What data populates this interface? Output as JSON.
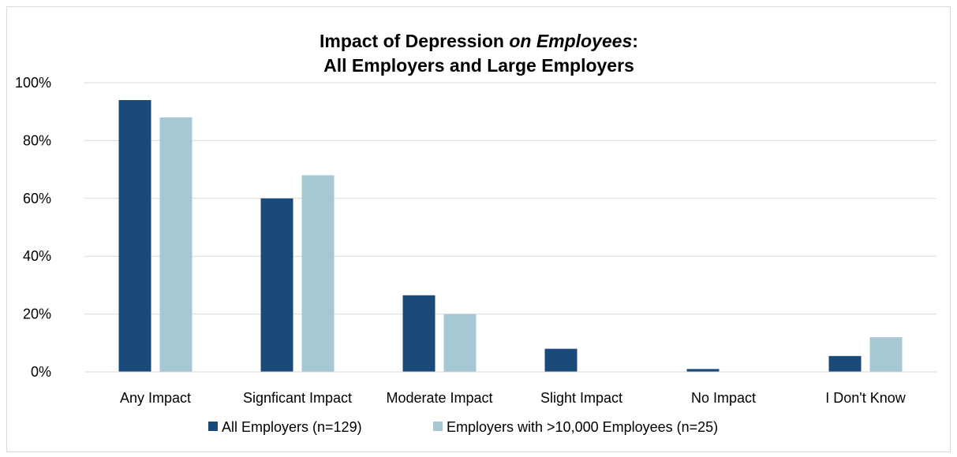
{
  "chart_data": {
    "type": "bar",
    "title_line1_part1": "Impact of Depression ",
    "title_line1_italic": "on Employees",
    "title_line1_part2": ":",
    "title_line2": "All Employers and Large Employers",
    "categories": [
      "Any Impact",
      "Signficant Impact",
      "Moderate Impact",
      "Slight Impact",
      "No Impact",
      "I Don't Know"
    ],
    "series": [
      {
        "name": "All Employers (n=129)",
        "color": "#1a4a7a",
        "values": [
          94,
          60,
          26.5,
          8,
          1,
          5.5
        ]
      },
      {
        "name": "Employers with >10,000 Employees (n=25)",
        "color": "#a5c8d4",
        "values": [
          88,
          68,
          20,
          0,
          0,
          12
        ]
      }
    ],
    "ylim": [
      0,
      100
    ],
    "yticks": [
      0,
      20,
      40,
      60,
      80,
      100
    ],
    "ytick_labels": [
      "0%",
      "20%",
      "40%",
      "60%",
      "80%",
      "100%"
    ],
    "grid": true,
    "legend_position": "bottom"
  }
}
